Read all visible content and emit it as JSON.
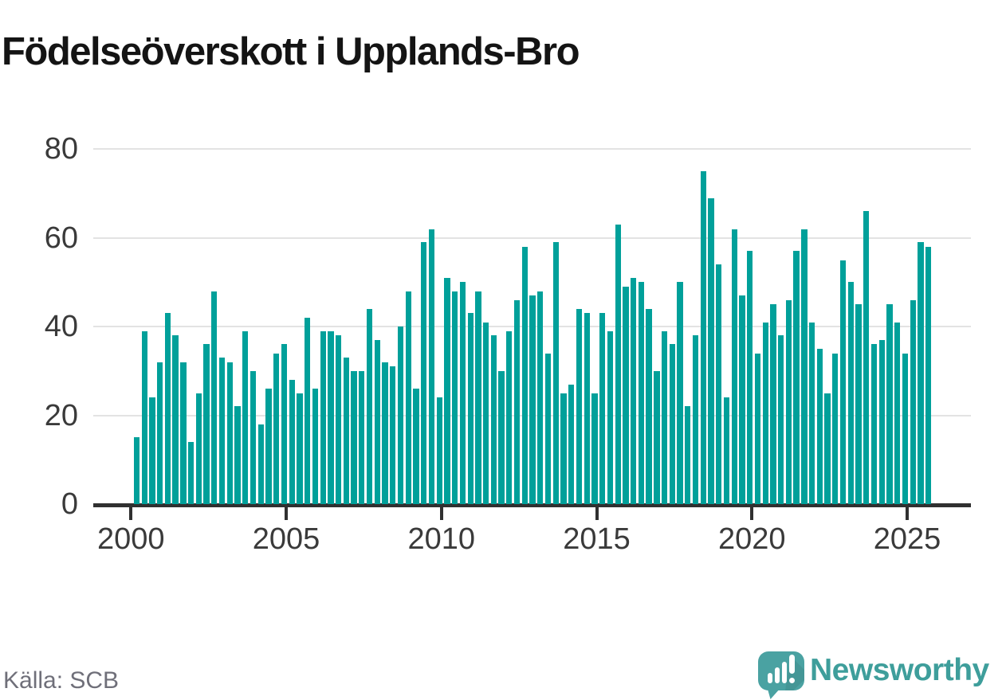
{
  "title": "Födelseöverskott i Upplands-Bro",
  "source": "Källa: SCB",
  "branding": {
    "name": "Newsworthy",
    "icon": "newsworthy-speech-bubble-bar-chart-icon",
    "text_color": "#3e9e9b",
    "icon_color": "#4aa2a2"
  },
  "colors": {
    "bar": "#00a09a",
    "gridline": "#e3e3e3",
    "axis": "#303030",
    "axis_label": "#3a3a3a",
    "title": "#141414",
    "source": "#6f6f79"
  },
  "chart_data": {
    "type": "bar",
    "title": "Födelseöverskott i Upplands-Bro",
    "xlabel": "",
    "ylabel": "",
    "frequency": "quarterly",
    "start_year": 2000,
    "start_quarter": 1,
    "end_year": 2025,
    "end_quarter": 3,
    "values": [
      15,
      39,
      24,
      32,
      43,
      38,
      32,
      14,
      25,
      36,
      48,
      33,
      32,
      22,
      39,
      30,
      18,
      26,
      34,
      36,
      28,
      25,
      42,
      26,
      39,
      39,
      38,
      33,
      30,
      30,
      44,
      37,
      32,
      31,
      40,
      48,
      26,
      59,
      62,
      24,
      51,
      48,
      50,
      43,
      48,
      41,
      38,
      30,
      39,
      46,
      58,
      47,
      48,
      34,
      59,
      25,
      27,
      44,
      43,
      25,
      43,
      39,
      63,
      49,
      51,
      50,
      44,
      30,
      39,
      36,
      50,
      22,
      38,
      75,
      69,
      54,
      24,
      62,
      47,
      57,
      34,
      41,
      45,
      38,
      46,
      57,
      62,
      41,
      35,
      25,
      34,
      55,
      50,
      45,
      66,
      36,
      37,
      45,
      41,
      34,
      46,
      59,
      58
    ],
    "x_ticks": [
      2000,
      2005,
      2010,
      2015,
      2020,
      2025
    ],
    "y_ticks": [
      0,
      20,
      40,
      60,
      80
    ],
    "ylim": [
      0,
      84
    ],
    "grid": "horizontal",
    "legend": "none"
  }
}
